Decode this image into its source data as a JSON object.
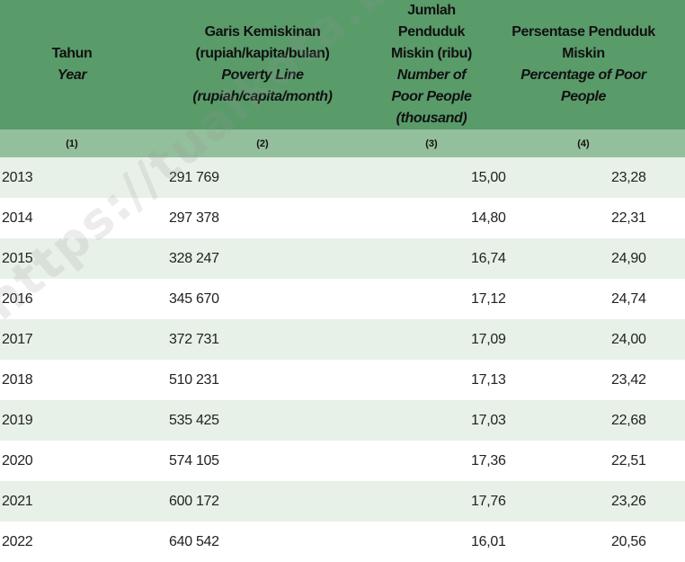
{
  "header": {
    "col1": {
      "id": "Tahun",
      "en": "Year"
    },
    "col2": {
      "id1": "Garis Kemiskinan",
      "id2": "(rupiah/kapita/bulan)",
      "en1": "Poverty Line",
      "en2": "(rupiah/capita/month)"
    },
    "col3": {
      "id1": "Jumlah Penduduk",
      "id2": "Miskin (ribu)",
      "en1": "Number of Poor People",
      "en2": "(thousand)"
    },
    "col4": {
      "id1": "Persentase Penduduk",
      "id2": "Miskin",
      "en1": "Percentage of Poor",
      "en2": "People"
    }
  },
  "column_numbers": [
    "(1)",
    "(2)",
    "(3)",
    "(4)"
  ],
  "rows": [
    [
      "2013",
      "291 769",
      "15,00",
      "23,28"
    ],
    [
      "2014",
      "297 378",
      "14,80",
      "22,31"
    ],
    [
      "2015",
      "328 247",
      "16,74",
      "24,90"
    ],
    [
      "2016",
      "345 670",
      "17,12",
      "24,74"
    ],
    [
      "2017",
      "372 731",
      "17,09",
      "24,00"
    ],
    [
      "2018",
      "510 231",
      "17,13",
      "23,42"
    ],
    [
      "2019",
      "535 425",
      "17,03",
      "22,68"
    ],
    [
      "2020",
      "574 105",
      "17,36",
      "22,51"
    ],
    [
      "2021",
      "600 172",
      "17,76",
      "23,26"
    ],
    [
      "2022",
      "640 542",
      "16,01",
      "20,56"
    ]
  ],
  "watermark": "https://tualkota.bps.go.id",
  "colors": {
    "header": "#5a9b6a",
    "subheader": "#94bf9c",
    "stripe": "#e7f1e8"
  }
}
